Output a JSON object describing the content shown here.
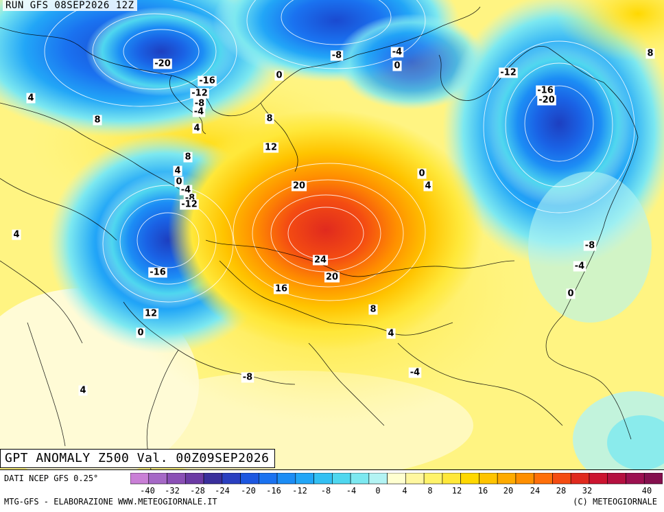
{
  "header": {
    "run_title": "RUN GFS 08SEP2026 12Z"
  },
  "map": {
    "title": "GPT ANOMALY Z500 Val. 00Z09SEP2026",
    "contour_labels": [
      "-20",
      "-16",
      "-12",
      "-8",
      "-4",
      "4",
      "8",
      "-8",
      "-4",
      "0",
      "0",
      "-12",
      "-16",
      "-20",
      "8",
      "4",
      "8",
      "8",
      "12",
      "4",
      "0",
      "-4",
      "-8",
      "-12",
      "4",
      "0",
      "4",
      "20",
      "24",
      "20",
      "16",
      "-16",
      "-8",
      "-4",
      "12",
      "8",
      "4",
      "0",
      "4",
      "-8",
      "-4",
      "0"
    ]
  },
  "legend": {
    "source": "DATI NCEP GFS 0.25°",
    "ticks": [
      "-40",
      "-32",
      "-28",
      "-24",
      "-20",
      "-16",
      "-12",
      "-8",
      "-4",
      "0",
      "4",
      "8",
      "12",
      "16",
      "20",
      "24",
      "28",
      "32",
      "40"
    ],
    "colors": [
      "#c97fd6",
      "#a568c6",
      "#8a4fb5",
      "#6b3aa4",
      "#3a2f9c",
      "#2a3fc0",
      "#1d57e0",
      "#1a72f0",
      "#1c8df5",
      "#22a6f7",
      "#33c0f3",
      "#4fd7ef",
      "#7ce8f0",
      "#b3f3f3",
      "#ffffd0",
      "#fff7a0",
      "#fff36a",
      "#ffe83a",
      "#ffd800",
      "#ffc400",
      "#ffab00",
      "#ff8f00",
      "#ff6f0a",
      "#f44c12",
      "#e02a1e",
      "#cc1430",
      "#b51040",
      "#9c1050",
      "#85104e"
    ]
  },
  "footer": {
    "left": "MTG-GFS - ELABORAZIONE WWW.METEOGIORNALE.IT",
    "right": "(C) METEOGIORNALE"
  }
}
